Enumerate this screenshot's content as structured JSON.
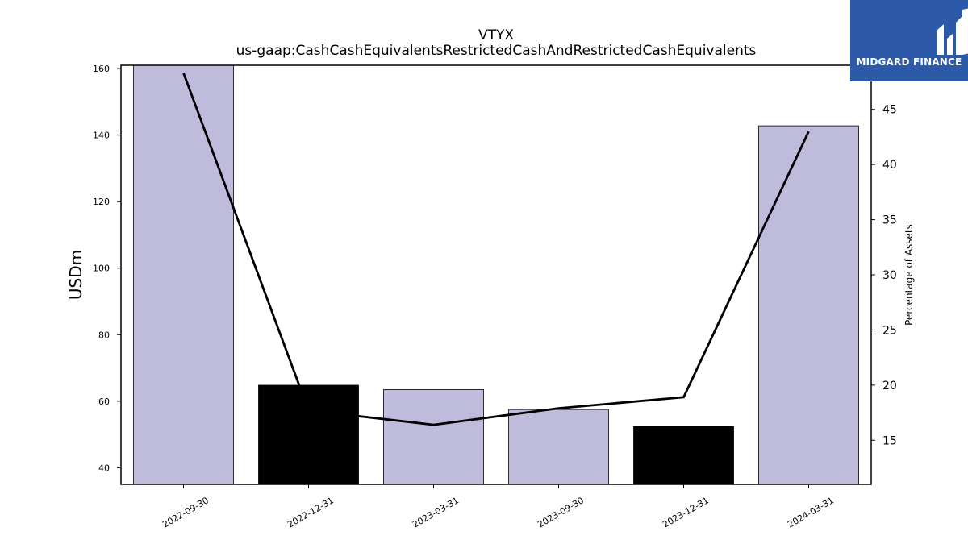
{
  "chart_data": {
    "type": "bar",
    "title": "VTYX",
    "subtitle": "us-gaap:CashCashEquivalentsRestrictedCashAndRestrictedCashEquivalents",
    "ylabel": "USDm",
    "y2label": "Percentage of Assets",
    "categories": [
      "2022-09-30",
      "2022-12-31",
      "2023-03-31",
      "2023-09-30",
      "2023-12-31",
      "2024-03-31"
    ],
    "values": [
      161,
      64.8,
      63.5,
      57.5,
      52.4,
      142.8
    ],
    "bar_colors": [
      "#bebbdb",
      "#000000",
      "#bebbdb",
      "#bebbdb",
      "#000000",
      "#bebbdb"
    ],
    "line_values": [
      48.3,
      17.7,
      16.4,
      17.9,
      18.9,
      43.0
    ],
    "ylim": [
      35,
      161
    ],
    "y2lim": [
      11,
      49
    ],
    "yticks": [
      40,
      60,
      80,
      100,
      120,
      140,
      160
    ],
    "y2ticks": [
      15,
      20,
      25,
      30,
      35,
      40,
      45
    ],
    "grid": false
  },
  "logo": {
    "text": "MIDGARD FINANCE",
    "color": "#2c5aa8"
  }
}
